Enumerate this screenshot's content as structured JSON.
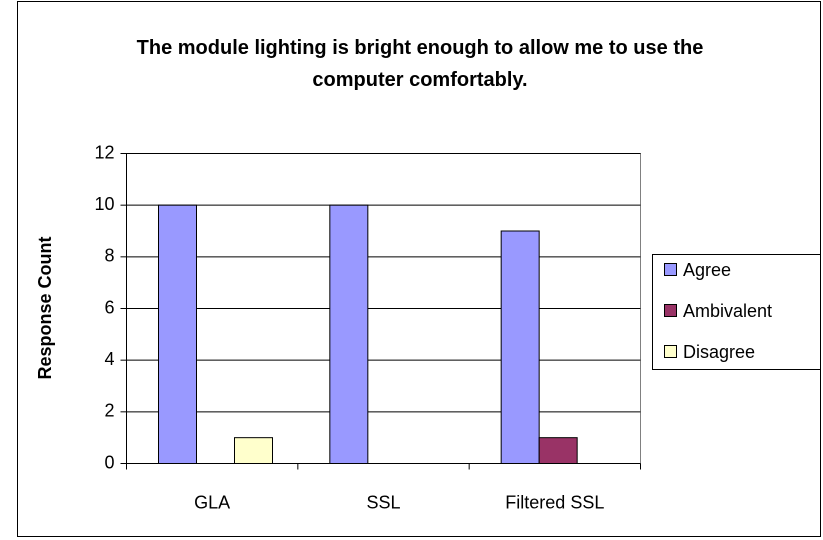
{
  "chart_data": {
    "type": "bar",
    "title": "The module lighting is bright enough to allow me to use the computer comfortably.",
    "y_label": "Response Count",
    "categories": [
      "GLA",
      "SSL",
      "Filtered SSL"
    ],
    "series": [
      {
        "name": "Agree",
        "color": "#9999ff",
        "values": [
          10,
          10,
          9
        ]
      },
      {
        "name": "Ambivalent",
        "color": "#993366",
        "values": [
          0,
          0,
          1
        ]
      },
      {
        "name": "Disagree",
        "color": "#ffffcc",
        "values": [
          1,
          0,
          0
        ]
      }
    ],
    "ylim": [
      0,
      12
    ],
    "yticks": [
      0,
      2,
      4,
      6,
      8,
      10,
      12
    ],
    "grid": true,
    "legend": "right"
  }
}
